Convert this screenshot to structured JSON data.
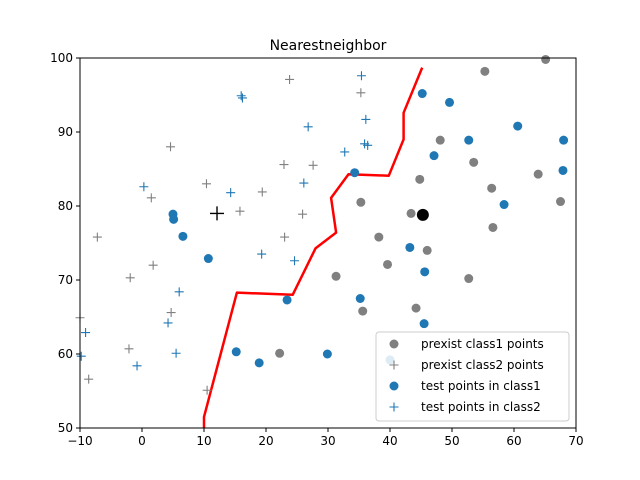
{
  "chart_data": {
    "type": "scatter",
    "title": "Nearestneighbor",
    "xlabel": "",
    "ylabel": "",
    "xlim": [
      -10,
      70
    ],
    "ylim": [
      50,
      100
    ],
    "xticks": [
      -10,
      0,
      10,
      20,
      30,
      40,
      50,
      60,
      70
    ],
    "yticks": [
      50,
      60,
      70,
      80,
      90,
      100
    ],
    "grid": false,
    "legend_position": "lower-right",
    "legend": [
      {
        "label": "prexist class1 points",
        "marker": "circle",
        "color": "#808080"
      },
      {
        "label": "prexist class2 points",
        "marker": "plus",
        "color": "#808080"
      },
      {
        "label": "test points in class1",
        "marker": "circle",
        "color": "#1f77b4"
      },
      {
        "label": "test points in class2",
        "marker": "plus",
        "color": "#1f77b4"
      }
    ],
    "series": [
      {
        "name": "prexist class1 points",
        "marker": "circle",
        "color": "#808080",
        "points": [
          [
            55.3,
            98.2
          ],
          [
            65.1,
            99.8
          ],
          [
            48.1,
            88.9
          ],
          [
            53.5,
            85.9
          ],
          [
            56.4,
            82.4
          ],
          [
            63.9,
            84.3
          ],
          [
            67.5,
            80.6
          ],
          [
            56.6,
            77.1
          ],
          [
            44.8,
            83.6
          ],
          [
            35.3,
            80.5
          ],
          [
            43.4,
            79.0
          ],
          [
            38.2,
            75.8
          ],
          [
            39.6,
            72.1
          ],
          [
            46.0,
            74.0
          ],
          [
            52.7,
            70.2
          ],
          [
            31.3,
            70.5
          ],
          [
            35.6,
            65.8
          ],
          [
            44.2,
            66.2
          ],
          [
            22.2,
            60.1
          ]
        ]
      },
      {
        "name": "prexist class2 points",
        "marker": "plus",
        "color": "#808080",
        "points": [
          [
            23.8,
            97.1
          ],
          [
            35.3,
            95.3
          ],
          [
            4.6,
            88.0
          ],
          [
            22.9,
            85.6
          ],
          [
            27.6,
            85.5
          ],
          [
            10.4,
            83.0
          ],
          [
            19.4,
            81.9
          ],
          [
            1.5,
            81.1
          ],
          [
            15.8,
            79.3
          ],
          [
            25.9,
            78.9
          ],
          [
            -7.2,
            75.8
          ],
          [
            23.0,
            75.8
          ],
          [
            1.8,
            72.0
          ],
          [
            -1.9,
            70.3
          ],
          [
            4.7,
            65.6
          ],
          [
            -10.0,
            64.9
          ],
          [
            -2.1,
            60.7
          ],
          [
            -8.6,
            56.6
          ],
          [
            10.5,
            55.1
          ]
        ]
      },
      {
        "name": "test points in class1",
        "marker": "circle",
        "color": "#1f77b4",
        "points": [
          [
            45.2,
            95.2
          ],
          [
            49.6,
            94.0
          ],
          [
            52.7,
            88.9
          ],
          [
            60.6,
            90.8
          ],
          [
            68.0,
            88.9
          ],
          [
            47.1,
            86.8
          ],
          [
            34.3,
            84.5
          ],
          [
            67.9,
            84.8
          ],
          [
            58.4,
            80.2
          ],
          [
            5.0,
            78.9
          ],
          [
            5.1,
            78.2
          ],
          [
            6.6,
            75.9
          ],
          [
            10.7,
            72.9
          ],
          [
            43.2,
            74.4
          ],
          [
            45.6,
            71.1
          ],
          [
            23.4,
            67.3
          ],
          [
            35.2,
            67.5
          ],
          [
            45.5,
            64.1
          ],
          [
            15.2,
            60.3
          ],
          [
            29.9,
            60.0
          ],
          [
            18.9,
            58.8
          ],
          [
            40.0,
            59.2
          ]
        ]
      },
      {
        "name": "test points in class2",
        "marker": "plus",
        "color": "#1f77b4",
        "points": [
          [
            35.4,
            97.6
          ],
          [
            16.0,
            94.9
          ],
          [
            16.2,
            94.6
          ],
          [
            26.8,
            90.7
          ],
          [
            36.1,
            91.7
          ],
          [
            35.9,
            88.4
          ],
          [
            36.4,
            88.2
          ],
          [
            32.7,
            87.3
          ],
          [
            0.3,
            82.6
          ],
          [
            14.3,
            81.8
          ],
          [
            26.1,
            83.1
          ],
          [
            19.3,
            73.5
          ],
          [
            24.6,
            72.6
          ],
          [
            6.0,
            68.4
          ],
          [
            4.2,
            64.2
          ],
          [
            -9.1,
            62.9
          ],
          [
            5.5,
            60.1
          ],
          [
            -0.8,
            58.4
          ],
          [
            -9.8,
            59.7
          ]
        ]
      }
    ],
    "query_point": {
      "marker": "plus",
      "color": "#000000",
      "x": 12.1,
      "y": 79.0
    },
    "highlight_point": {
      "marker": "circle",
      "color": "#000000",
      "x": 45.3,
      "y": 78.8
    },
    "boundary": {
      "color": "#ff0000",
      "points": [
        [
          10.0,
          50.0
        ],
        [
          10.0,
          51.5
        ],
        [
          15.3,
          68.3
        ],
        [
          24.3,
          68.0
        ],
        [
          28.0,
          74.3
        ],
        [
          31.3,
          76.4
        ],
        [
          30.5,
          81.1
        ],
        [
          33.3,
          84.3
        ],
        [
          39.8,
          84.1
        ],
        [
          42.2,
          89.0
        ],
        [
          42.2,
          92.6
        ],
        [
          45.2,
          98.7
        ]
      ]
    }
  }
}
